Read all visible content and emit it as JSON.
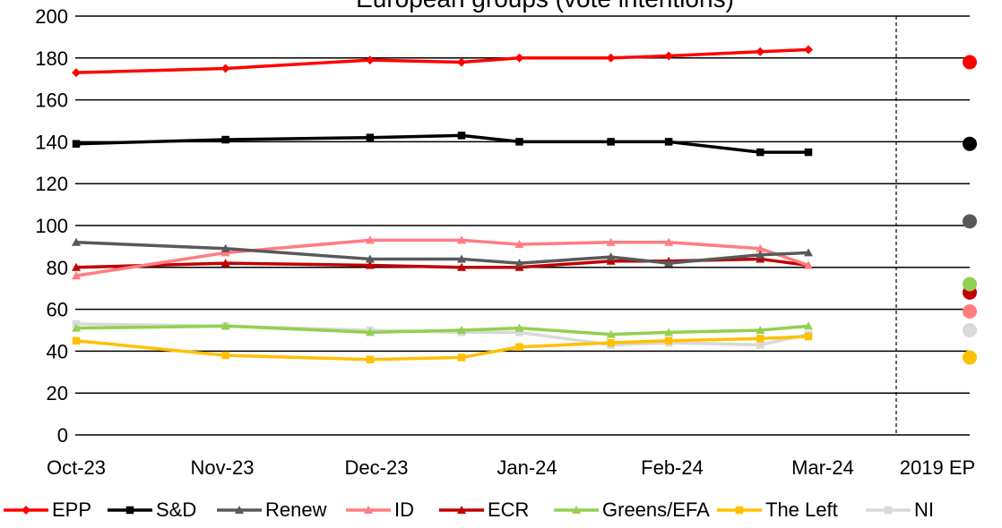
{
  "chart_data": {
    "type": "line",
    "title": "European groups (vote intentions)",
    "xlabel": "",
    "ylabel": "",
    "ylim": [
      0,
      200
    ],
    "yticks": [
      0,
      20,
      40,
      60,
      80,
      100,
      120,
      140,
      160,
      180,
      200
    ],
    "x_tick_labels": [
      "Oct-23",
      "Nov-23",
      "Dec-23",
      "Jan-24",
      "Feb-24",
      "Mar-24",
      "2019 EP"
    ],
    "grid": "horizontal",
    "legend_position": "bottom",
    "x_dates": [
      "2023-10-01",
      "2023-11-01",
      "2023-12-01",
      "2023-12-20",
      "2024-01-01",
      "2024-01-20",
      "2024-02-01",
      "2024-02-20",
      "2024-03-01"
    ],
    "reference_label": "2019 EP",
    "series": [
      {
        "name": "EPP",
        "color": "#ff0000",
        "marker": "diamond",
        "values": [
          173,
          175,
          179,
          178,
          180,
          180,
          181,
          183,
          184
        ],
        "ep2019": 178
      },
      {
        "name": "S&D",
        "color": "#000000",
        "marker": "square",
        "values": [
          139,
          141,
          142,
          143,
          140,
          140,
          140,
          135,
          135
        ],
        "ep2019": 139
      },
      {
        "name": "Renew",
        "color": "#595959",
        "marker": "triangle",
        "values": [
          92,
          89,
          84,
          84,
          82,
          85,
          82,
          86,
          87
        ],
        "ep2019": 102
      },
      {
        "name": "ID",
        "color": "#ff7c80",
        "marker": "triangle",
        "values": [
          76,
          87,
          93,
          93,
          91,
          92,
          92,
          89,
          81
        ],
        "ep2019": 59
      },
      {
        "name": "ECR",
        "color": "#c00000",
        "marker": "triangle",
        "values": [
          80,
          82,
          81,
          80,
          80,
          83,
          83,
          84,
          81
        ],
        "ep2019": 68
      },
      {
        "name": "Greens/EFA",
        "color": "#92d050",
        "marker": "triangle",
        "values": [
          51,
          52,
          49,
          50,
          51,
          48,
          49,
          50,
          52
        ],
        "ep2019": 72
      },
      {
        "name": "The Left",
        "color": "#ffc000",
        "marker": "square",
        "values": [
          45,
          38,
          36,
          37,
          42,
          44,
          45,
          46,
          47
        ],
        "ep2019": 37
      },
      {
        "name": "NI",
        "color": "#d9d9d9",
        "marker": "square",
        "values": [
          53,
          52,
          50,
          49,
          49,
          43,
          44,
          43,
          48
        ],
        "ep2019": 50
      }
    ]
  }
}
